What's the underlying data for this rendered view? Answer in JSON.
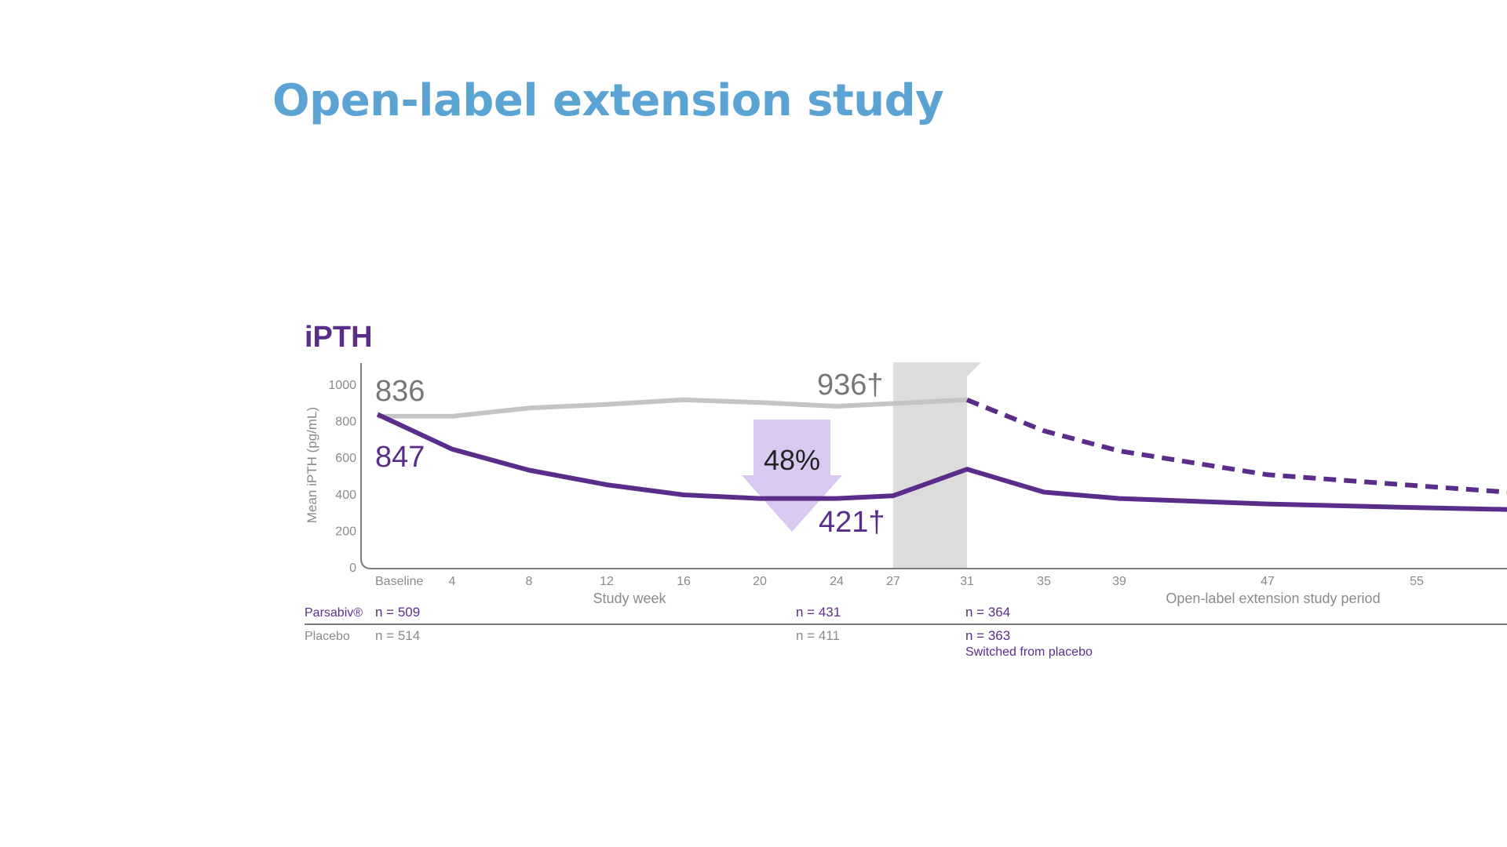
{
  "slide": {
    "title": "Open-label extension study",
    "title_color": "#5ba3d3"
  },
  "colors": {
    "parsabiv": "#5b2d8b",
    "placebo_line": "#c4c4c4",
    "placebo_label": "#777777",
    "axis": "#7a7a7a",
    "tick_text": "#8a8a8a",
    "transition_band": "#dcdcdc",
    "arrow_fill": "#d9c8ef"
  },
  "chart_data": {
    "type": "line",
    "title": "iPTH",
    "xlabel": "Study week",
    "ylabel": "Mean iPTH (pg/mL)",
    "ylim": [
      0,
      1000
    ],
    "y_ticks": [
      0,
      200,
      400,
      600,
      800,
      1000
    ],
    "x_ticks": [
      "Baseline",
      "4",
      "8",
      "12",
      "16",
      "20",
      "24",
      "27",
      "31",
      "35",
      "39",
      "47",
      "55"
    ],
    "x_tick_values": [
      0,
      4,
      8,
      12,
      16,
      20,
      24,
      27,
      31,
      35,
      39,
      47,
      55
    ],
    "x_secondary_label": "Open-label extension study period",
    "shaded_region": [
      27,
      31
    ],
    "series": [
      {
        "name": "Placebo",
        "style": "solid",
        "x": [
          0,
          4,
          8,
          12,
          16,
          20,
          24,
          27,
          31
        ],
        "y": [
          825,
          825,
          870,
          890,
          915,
          900,
          880,
          895,
          915
        ]
      },
      {
        "name": "Parsabiv",
        "style": "solid",
        "x": [
          0,
          4,
          8,
          12,
          16,
          20,
          24,
          27,
          31,
          35,
          39,
          47,
          55,
          60
        ],
        "y": [
          835,
          645,
          530,
          450,
          395,
          375,
          375,
          390,
          535,
          410,
          375,
          345,
          325,
          315
        ]
      },
      {
        "name": "Switched from placebo",
        "style": "dashed",
        "x": [
          31,
          35,
          39,
          47,
          55,
          60
        ],
        "y": [
          915,
          745,
          635,
          505,
          445,
          410
        ]
      }
    ],
    "annotations": {
      "placebo_baseline": "836",
      "placebo_week24": "936†",
      "parsabiv_baseline": "847",
      "parsabiv_week24": "421†",
      "reduction": "48%"
    },
    "n_table": {
      "parsabiv_label": "Parsabiv®",
      "placebo_label": "Placebo",
      "parsabiv_baseline": "n = 509",
      "parsabiv_week24": "n = 431",
      "parsabiv_week31": "n = 364",
      "placebo_baseline": "n = 514",
      "placebo_week24": "n = 411",
      "placebo_week31": "n = 363",
      "switched_note": "Switched from placebo"
    }
  }
}
